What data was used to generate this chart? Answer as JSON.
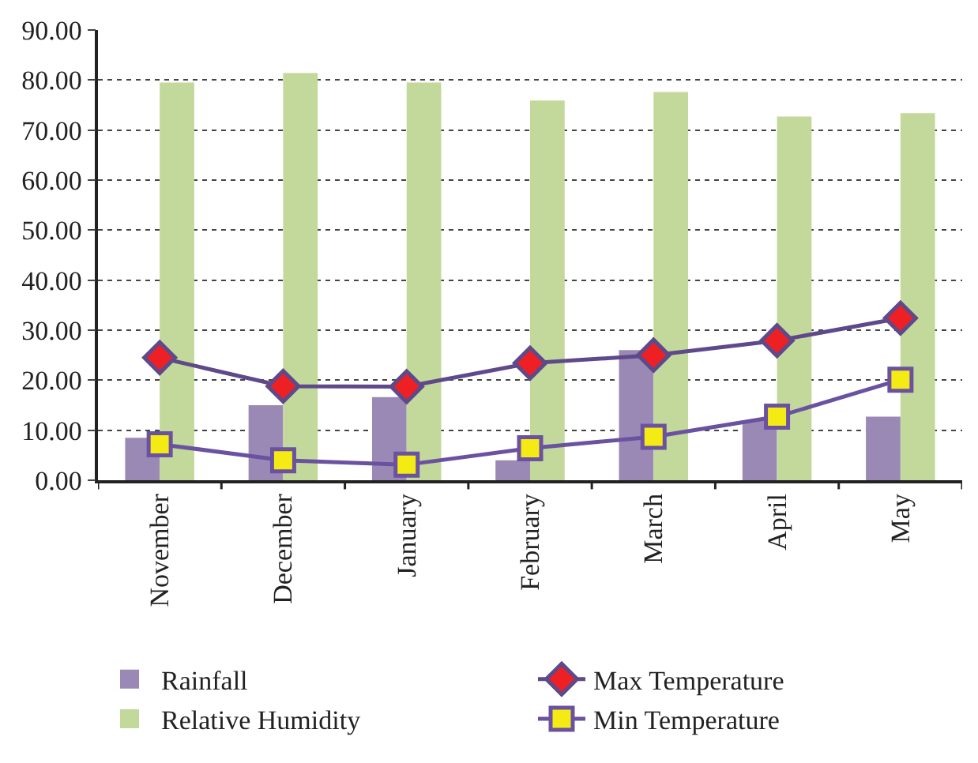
{
  "chart_data": {
    "type": "bar",
    "categories": [
      "November",
      "December",
      "January",
      "February",
      "March",
      "April",
      "May"
    ],
    "series": [
      {
        "name": "Rainfall",
        "color": "#9b89b5",
        "values": [
          8.5,
          15.0,
          16.6,
          4.0,
          26.0,
          12.0,
          12.7
        ]
      },
      {
        "name": "Relative Humidity",
        "color": "#c3d89b",
        "values": [
          79.5,
          81.4,
          79.5,
          75.9,
          77.6,
          72.7,
          73.4
        ]
      },
      {
        "name": "Max Temperature",
        "type": "line",
        "color": "#5e4a8a",
        "marker": "diamond",
        "colors": [
          "#ee2024",
          "#ee2024",
          "#ee2024",
          "#ee2024",
          "#ee2024",
          "#ee2024",
          "#ee2024"
        ],
        "values": [
          24.5,
          18.8,
          18.7,
          23.4,
          25.0,
          27.9,
          32.4
        ]
      },
      {
        "name": "Min Temperature",
        "type": "line",
        "color": "#6a52a0",
        "marker": "square",
        "colors": [
          "#f4ea14",
          "#f4ea14",
          "#f4ea14",
          "#f4ea14",
          "#f4ea14",
          "#f4ea14",
          "#f4ea14"
        ],
        "values": [
          7.2,
          4.0,
          3.1,
          6.4,
          8.7,
          12.7,
          20.1
        ]
      }
    ],
    "ylim": [
      0,
      90
    ],
    "yticks": [
      {
        "value": 0,
        "label": "0.00"
      },
      {
        "value": 10,
        "label": "10.00"
      },
      {
        "value": 20,
        "label": "20.00"
      },
      {
        "value": 30,
        "label": "30.00"
      },
      {
        "value": 40,
        "label": "40.00"
      },
      {
        "value": 50,
        "label": "50.00"
      },
      {
        "value": 60,
        "label": "60.00"
      },
      {
        "value": 70,
        "label": "70.00"
      },
      {
        "value": 80,
        "label": "80.00"
      },
      {
        "value": 90,
        "label": "90.00"
      }
    ],
    "grid": "y",
    "legend": "bottom",
    "line_style": "solid"
  }
}
